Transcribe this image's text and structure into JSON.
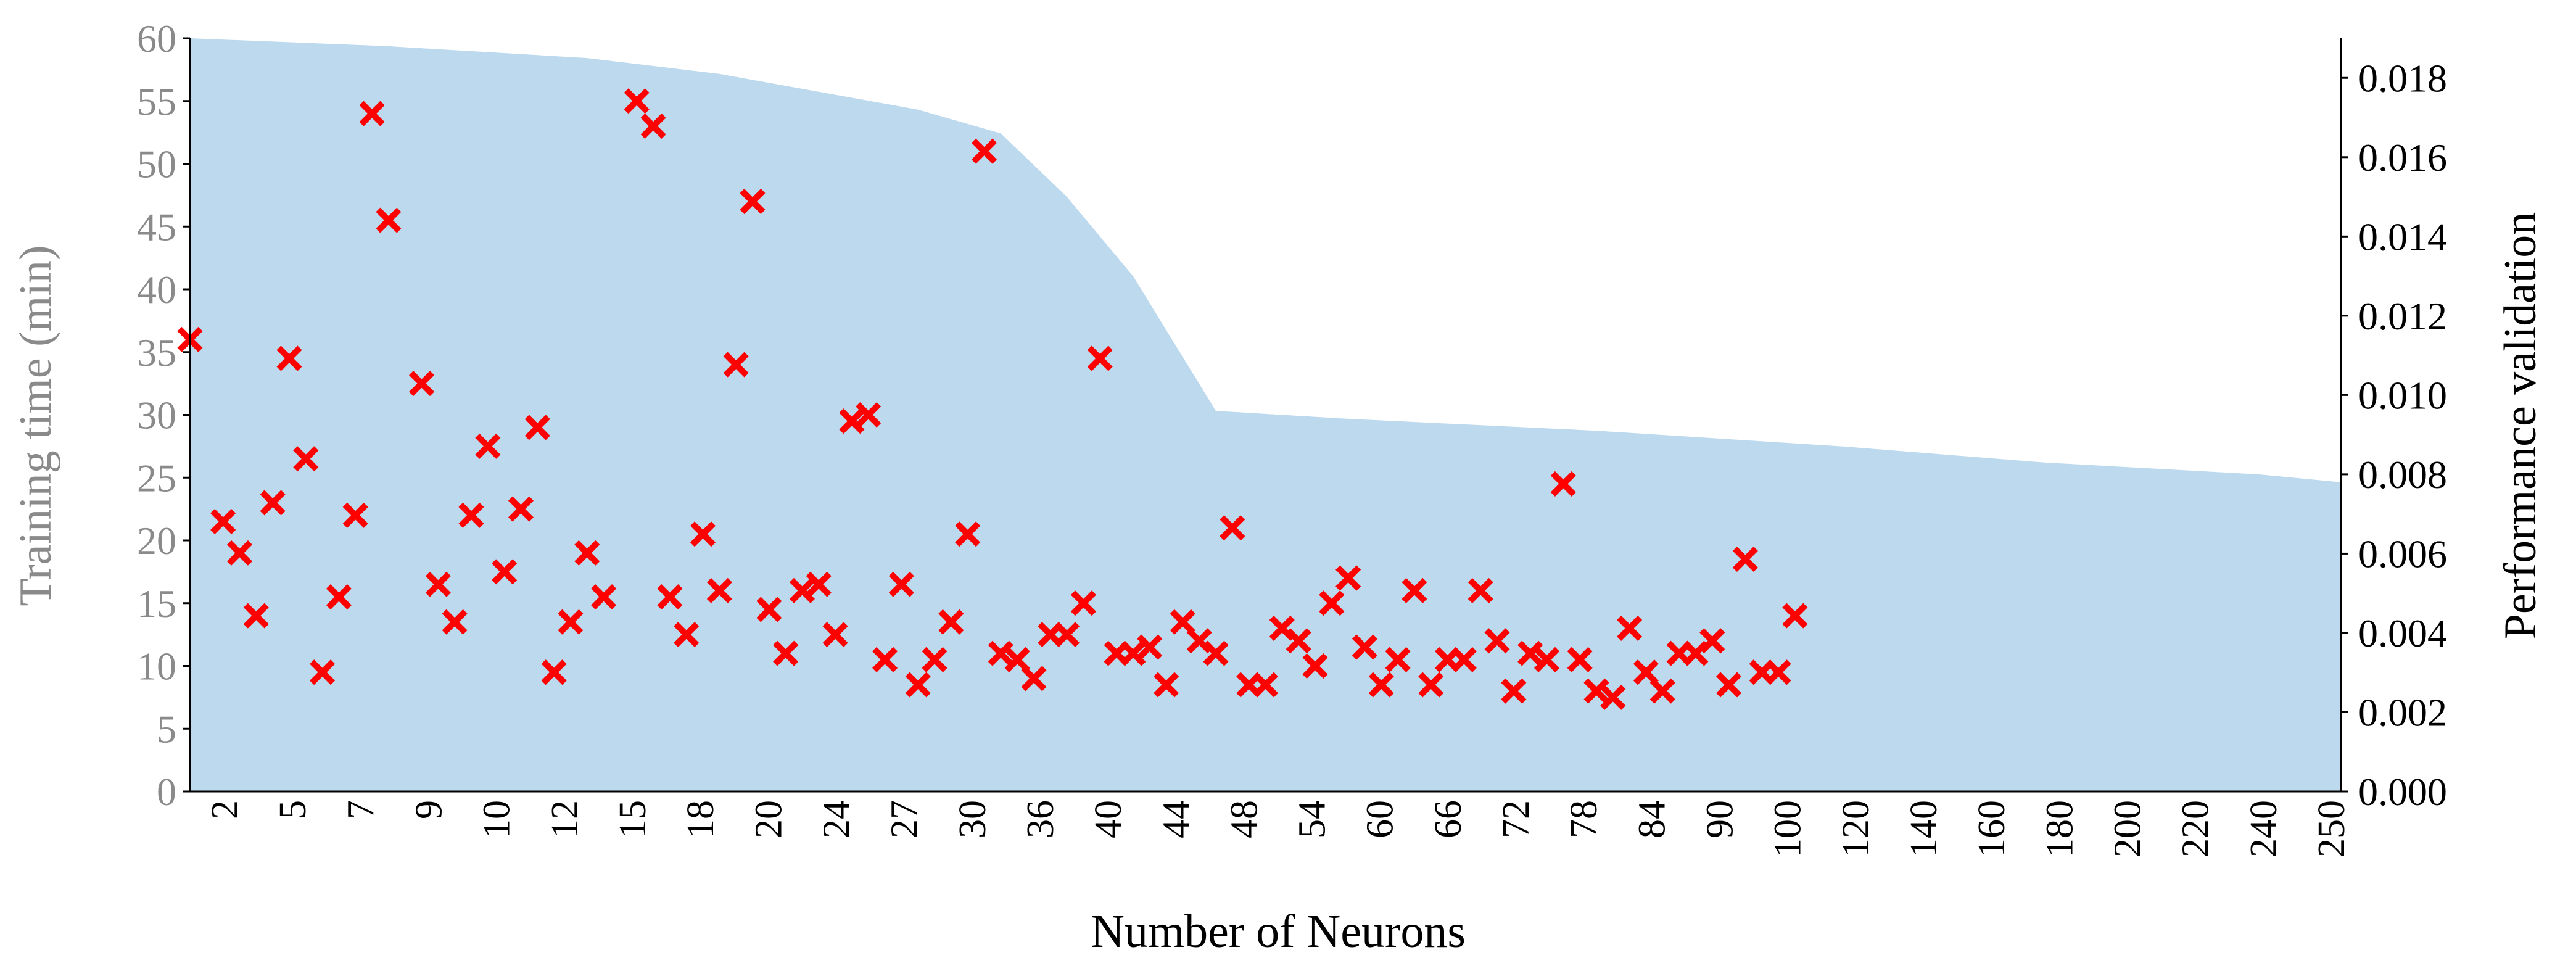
{
  "chart_data": {
    "type": "scatter",
    "xlabel": "Number  of Neurons",
    "ylabel_left": "Training time (min)",
    "ylabel_right": "Performance validation",
    "ylim_left": [
      0,
      60
    ],
    "ylim_right": [
      0,
      0.019
    ],
    "left_ticks": [
      "0",
      "5",
      "10",
      "15",
      "20",
      "25",
      "30",
      "35",
      "40",
      "45",
      "50",
      "55",
      "60"
    ],
    "right_ticks": [
      "0.000",
      "0.002",
      "0.004",
      "0.006",
      "0.008",
      "0.010",
      "0.012",
      "0.014",
      "0.016",
      "0.018"
    ],
    "x_tick_labels": [
      "2",
      "5",
      "7",
      "9",
      "10",
      "12",
      "15",
      "18",
      "20",
      "24",
      "27",
      "30",
      "36",
      "40",
      "44",
      "48",
      "54",
      "60",
      "66",
      "72",
      "78",
      "84",
      "90",
      "100",
      "120",
      "140",
      "160",
      "180",
      "200",
      "220",
      "240",
      "250"
    ],
    "area_series": {
      "axis": "right",
      "color": "#bcd9ee",
      "points": [
        [
          0,
          0.019
        ],
        [
          12,
          0.0188
        ],
        [
          24,
          0.0185
        ],
        [
          32,
          0.0181
        ],
        [
          44,
          0.0172
        ],
        [
          49,
          0.0166
        ],
        [
          53,
          0.015
        ],
        [
          57,
          0.013
        ],
        [
          62,
          0.0096
        ],
        [
          70,
          0.0094
        ],
        [
          85,
          0.0091
        ],
        [
          100,
          0.0087
        ],
        [
          112,
          0.0083
        ],
        [
          125,
          0.008
        ],
        [
          130,
          0.0078
        ]
      ]
    },
    "scatter_series": {
      "axis": "left",
      "marker": "x",
      "color": "#ff0000",
      "points": [
        [
          0,
          36.0
        ],
        [
          2,
          21.5
        ],
        [
          3,
          19.0
        ],
        [
          4,
          14.0
        ],
        [
          5,
          23.0
        ],
        [
          6,
          34.5
        ],
        [
          7,
          26.5
        ],
        [
          8,
          9.5
        ],
        [
          9,
          15.5
        ],
        [
          10,
          22.0
        ],
        [
          11,
          54.0
        ],
        [
          12,
          45.5
        ],
        [
          14,
          32.5
        ],
        [
          15,
          16.5
        ],
        [
          16,
          13.5
        ],
        [
          17,
          22.0
        ],
        [
          18,
          27.5
        ],
        [
          19,
          17.5
        ],
        [
          20,
          22.5
        ],
        [
          21,
          29.0
        ],
        [
          22,
          9.5
        ],
        [
          23,
          13.5
        ],
        [
          24,
          19.0
        ],
        [
          25,
          15.5
        ],
        [
          27,
          55.0
        ],
        [
          28,
          53.0
        ],
        [
          29,
          15.5
        ],
        [
          30,
          12.5
        ],
        [
          31,
          20.5
        ],
        [
          32,
          16.0
        ],
        [
          33,
          34.0
        ],
        [
          34,
          47.0
        ],
        [
          35,
          14.5
        ],
        [
          36,
          11.0
        ],
        [
          37,
          16.0
        ],
        [
          38,
          16.5
        ],
        [
          39,
          12.5
        ],
        [
          40,
          29.5
        ],
        [
          41,
          30.0
        ],
        [
          42,
          10.5
        ],
        [
          43,
          16.5
        ],
        [
          44,
          8.5
        ],
        [
          45,
          10.5
        ],
        [
          46,
          13.5
        ],
        [
          47,
          20.5
        ],
        [
          48,
          51.0
        ],
        [
          49,
          11.0
        ],
        [
          50,
          10.5
        ],
        [
          51,
          9.0
        ],
        [
          52,
          12.5
        ],
        [
          53,
          12.5
        ],
        [
          54,
          15.0
        ],
        [
          55,
          34.5
        ],
        [
          56,
          11.0
        ],
        [
          57,
          11.0
        ],
        [
          58,
          11.5
        ],
        [
          59,
          8.5
        ],
        [
          60,
          13.5
        ],
        [
          61,
          12.0
        ],
        [
          62,
          11.0
        ],
        [
          63,
          21.0
        ],
        [
          64,
          8.5
        ],
        [
          65,
          8.5
        ],
        [
          66,
          13.0
        ],
        [
          67,
          12.0
        ],
        [
          68,
          10.0
        ],
        [
          69,
          15.0
        ],
        [
          70,
          17.0
        ],
        [
          71,
          11.5
        ],
        [
          72,
          8.5
        ],
        [
          73,
          10.5
        ],
        [
          74,
          16.0
        ],
        [
          75,
          8.5
        ],
        [
          76,
          10.5
        ],
        [
          77,
          10.5
        ],
        [
          78,
          16.0
        ],
        [
          79,
          12.0
        ],
        [
          80,
          8.0
        ],
        [
          81,
          11.0
        ],
        [
          82,
          10.5
        ],
        [
          83,
          24.5
        ],
        [
          84,
          10.5
        ],
        [
          85,
          8.0
        ],
        [
          86,
          7.5
        ],
        [
          87,
          13.0
        ],
        [
          88,
          9.5
        ],
        [
          89,
          8.0
        ],
        [
          90,
          11.0
        ],
        [
          91,
          11.0
        ],
        [
          92,
          12.0
        ],
        [
          93,
          8.5
        ],
        [
          94,
          18.5
        ],
        [
          95,
          9.5
        ],
        [
          96,
          9.5
        ],
        [
          97,
          14.0
        ]
      ]
    }
  }
}
